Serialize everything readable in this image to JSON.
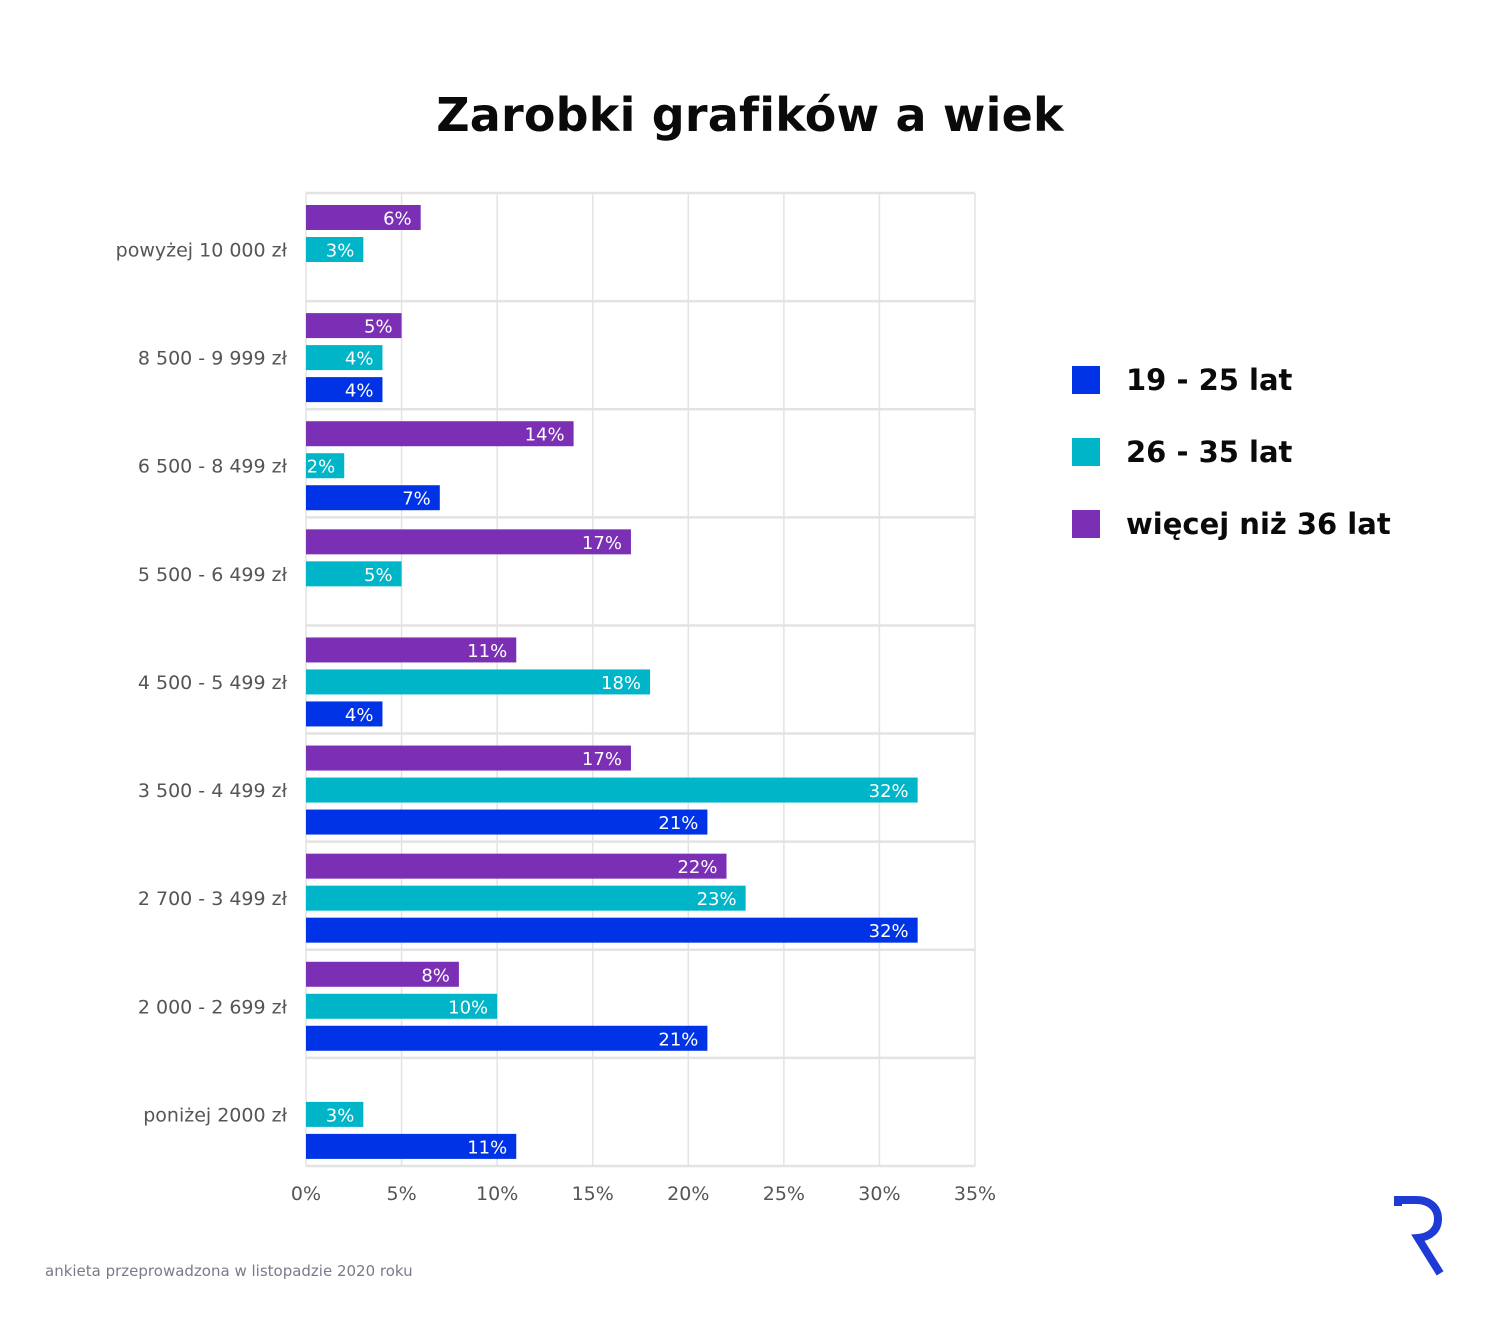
{
  "colors": {
    "series_19_25": "#0033e6",
    "series_26_35": "#00b5c8",
    "series_36_plus": "#7b2fb5",
    "grid": "#e3e3e3",
    "logo": "#1f3bd6"
  },
  "chart_data": {
    "type": "bar",
    "orientation": "horizontal",
    "title": "Zarobki grafików a wiek",
    "categories": [
      "powyżej 10 000 zł",
      "8 500 - 9 999 zł",
      "6 500 - 8 499 zł",
      "5 500 - 6 499 zł",
      "4 500 - 5 499 zł",
      "3 500 - 4 499 zł",
      "2 700 - 3 499 zł",
      "2 000 - 2 699 zł",
      "poniżej 2000 zł"
    ],
    "series": [
      {
        "name": "więcej niż 36 lat",
        "color": "#7b2fb5",
        "values": [
          6,
          5,
          14,
          17,
          11,
          17,
          22,
          8,
          null
        ]
      },
      {
        "name": "26 - 35 lat",
        "color": "#00b5c8",
        "values": [
          3,
          4,
          2,
          5,
          18,
          32,
          23,
          10,
          3
        ]
      },
      {
        "name": "19 - 25 lat",
        "color": "#0033e6",
        "values": [
          null,
          4,
          7,
          null,
          4,
          21,
          32,
          21,
          11
        ]
      }
    ],
    "value_unit": "%",
    "xlim": [
      0,
      35
    ],
    "x_ticks": [
      "0%",
      "5%",
      "10%",
      "15%",
      "20%",
      "25%",
      "30%",
      "35%"
    ],
    "grid": true,
    "legend_position": "right"
  },
  "legend": {
    "items": [
      {
        "label": "19 - 25 lat",
        "color": "#0033e6"
      },
      {
        "label": "26 - 35 lat",
        "color": "#00b5c8"
      },
      {
        "label": "więcej niż 36 lat",
        "color": "#7b2fb5"
      }
    ]
  },
  "footnote": "ankieta przeprowadzona w listopadzie 2020 roku",
  "logo_icon": "r-brand-logo-icon"
}
